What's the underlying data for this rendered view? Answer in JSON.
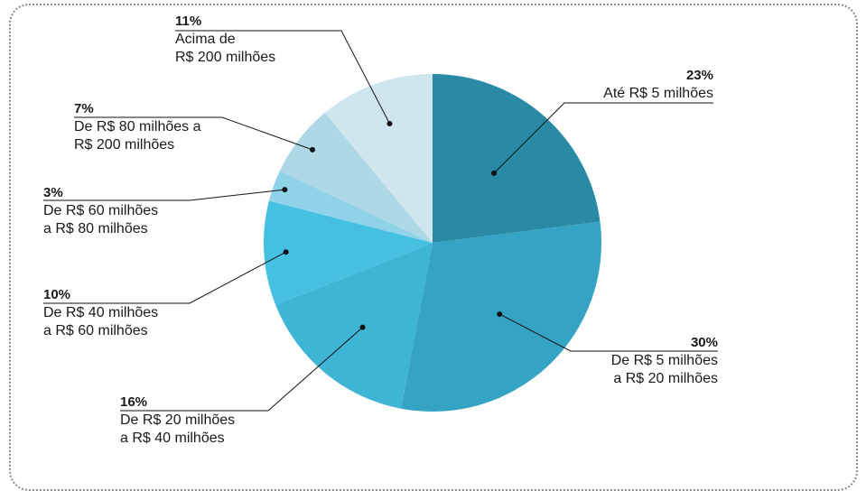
{
  "chart_data": {
    "type": "pie",
    "title": "",
    "slices": [
      {
        "value": 23,
        "pct_label": "23%",
        "desc": "Até R$ 5 milhões",
        "color": "#2a8aa6"
      },
      {
        "value": 30,
        "pct_label": "30%",
        "desc": "De R$ 5 milhões\na R$ 20 milhões",
        "color": "#35a3c4"
      },
      {
        "value": 16,
        "pct_label": "16%",
        "desc": "De R$ 20 milhões\na R$ 40 milhões",
        "color": "#3fb5d6"
      },
      {
        "value": 10,
        "pct_label": "10%",
        "desc": "De R$ 40 milhões\na R$ 60 milhões",
        "color": "#45c0e0"
      },
      {
        "value": 3,
        "pct_label": "3%",
        "desc": "De R$ 60 milhões\na R$ 80 milhões",
        "color": "#8fd3e8"
      },
      {
        "value": 7,
        "pct_label": "7%",
        "desc": "De R$ 80 milhões a\nR$ 200 milhões",
        "color": "#aed8e5"
      },
      {
        "value": 11,
        "pct_label": "11%",
        "desc": "Acima de\nR$ 200 milhões",
        "color": "#cfe6ef"
      }
    ]
  }
}
